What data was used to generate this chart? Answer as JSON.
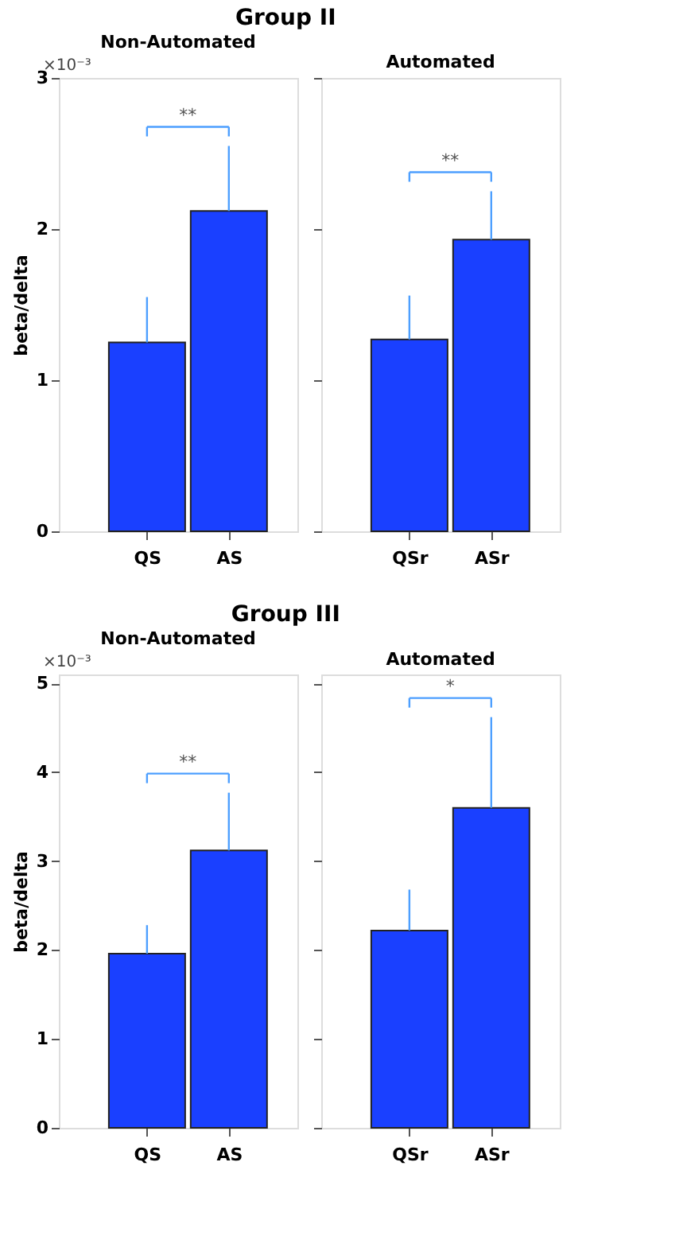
{
  "chart_data": [
    {
      "type": "bar",
      "title": "Group II",
      "subtitle": "Non-Automated",
      "ylabel": "beta/delta",
      "categories": [
        "QS",
        "AS"
      ],
      "values": [
        1.25,
        2.12
      ],
      "errors": [
        [
          1.25,
          1.55
        ],
        [
          2.12,
          2.55
        ]
      ],
      "color": "#1a40ff",
      "ylim": [
        0,
        3
      ],
      "yticks": [
        0,
        1,
        2,
        3
      ],
      "grid": false,
      "annotations": [
        "×10⁻³",
        "**"
      ]
    },
    {
      "type": "bar",
      "subtitle": "Automated",
      "categories": [
        "QSr",
        "ASr"
      ],
      "values": [
        1.27,
        1.93
      ],
      "errors": [
        [
          1.27,
          1.56
        ],
        [
          1.93,
          2.25
        ]
      ],
      "color": "#1a40ff",
      "ylim": [
        0,
        3
      ],
      "yticks": [
        0,
        1,
        2,
        3
      ],
      "grid": false,
      "tick_labels": "x",
      "annotations": [
        "**"
      ]
    },
    {
      "type": "bar",
      "title": "Group III",
      "subtitle": "Non-Automated",
      "ylabel": "beta/delta",
      "categories": [
        "QS",
        "AS"
      ],
      "values": [
        1.96,
        3.12
      ],
      "errors": [
        [
          1.96,
          2.28
        ],
        [
          3.12,
          3.77
        ]
      ],
      "color": "#1a40ff",
      "ylim": [
        0,
        5.1
      ],
      "yticks": [
        0,
        1,
        2,
        3,
        4,
        5
      ],
      "grid": false,
      "annotations": [
        "×10⁻³",
        "**"
      ]
    },
    {
      "type": "bar",
      "subtitle": "Automated",
      "categories": [
        "QSr",
        "ASr"
      ],
      "values": [
        2.22,
        3.6
      ],
      "errors": [
        [
          2.22,
          2.68
        ],
        [
          3.6,
          4.62
        ]
      ],
      "color": "#1a40ff",
      "ylim": [
        0,
        5.1
      ],
      "yticks": [
        0,
        1,
        2,
        3,
        4,
        5
      ],
      "grid": false,
      "tick_labels": "x",
      "annotations": [
        "*"
      ]
    }
  ]
}
